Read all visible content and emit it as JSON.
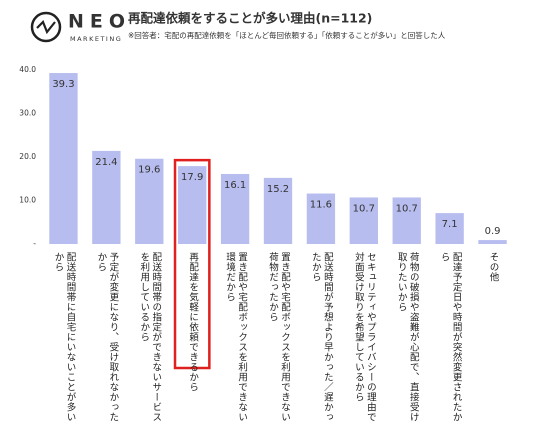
{
  "logo": {
    "name": "NEO",
    "sub": "MARKETING"
  },
  "chart_data": {
    "type": "bar",
    "title": "再配達依頼をすることが多い理由(n=112)",
    "subtitle": "※回答者：宅配の再配達依頼を「ほとんど毎回依頼する」「依頼することが多い」と回答した人",
    "categories": [
      "配送時間帯に自宅にいないことが多いから",
      "予定が変更になり、受け取れなかったから",
      "配送時間帯の指定ができないサービスを利用しているから",
      "再配達を気軽に依頼できるから",
      "置き配や宅配ボックスを利用できない環境だから",
      "置き配や宅配ボックスを利用できない荷物だったから",
      "配送時間が予想より早かった／遅かったから",
      "セキュリティやプライバシーの理由で対面受け取りを希望しているから",
      "荷物の破損や盗難が心配で、直接受け取りたいから",
      "配達予定日や時間が突然変更されたから",
      "その他"
    ],
    "values": [
      39.3,
      21.4,
      19.6,
      17.9,
      16.1,
      15.2,
      11.6,
      10.7,
      10.7,
      7.1,
      0.9
    ],
    "color": "#b7bdee",
    "ylim": [
      0,
      40
    ],
    "yticks": [
      {
        "value": 0,
        "label": "-"
      },
      {
        "value": 10,
        "label": "10.0"
      },
      {
        "value": 20,
        "label": "20.0"
      },
      {
        "value": 30,
        "label": "30.0"
      },
      {
        "value": 40,
        "label": "40.0"
      }
    ],
    "grid": false,
    "highlight": 3,
    "highlight_color": "#e0201e"
  }
}
